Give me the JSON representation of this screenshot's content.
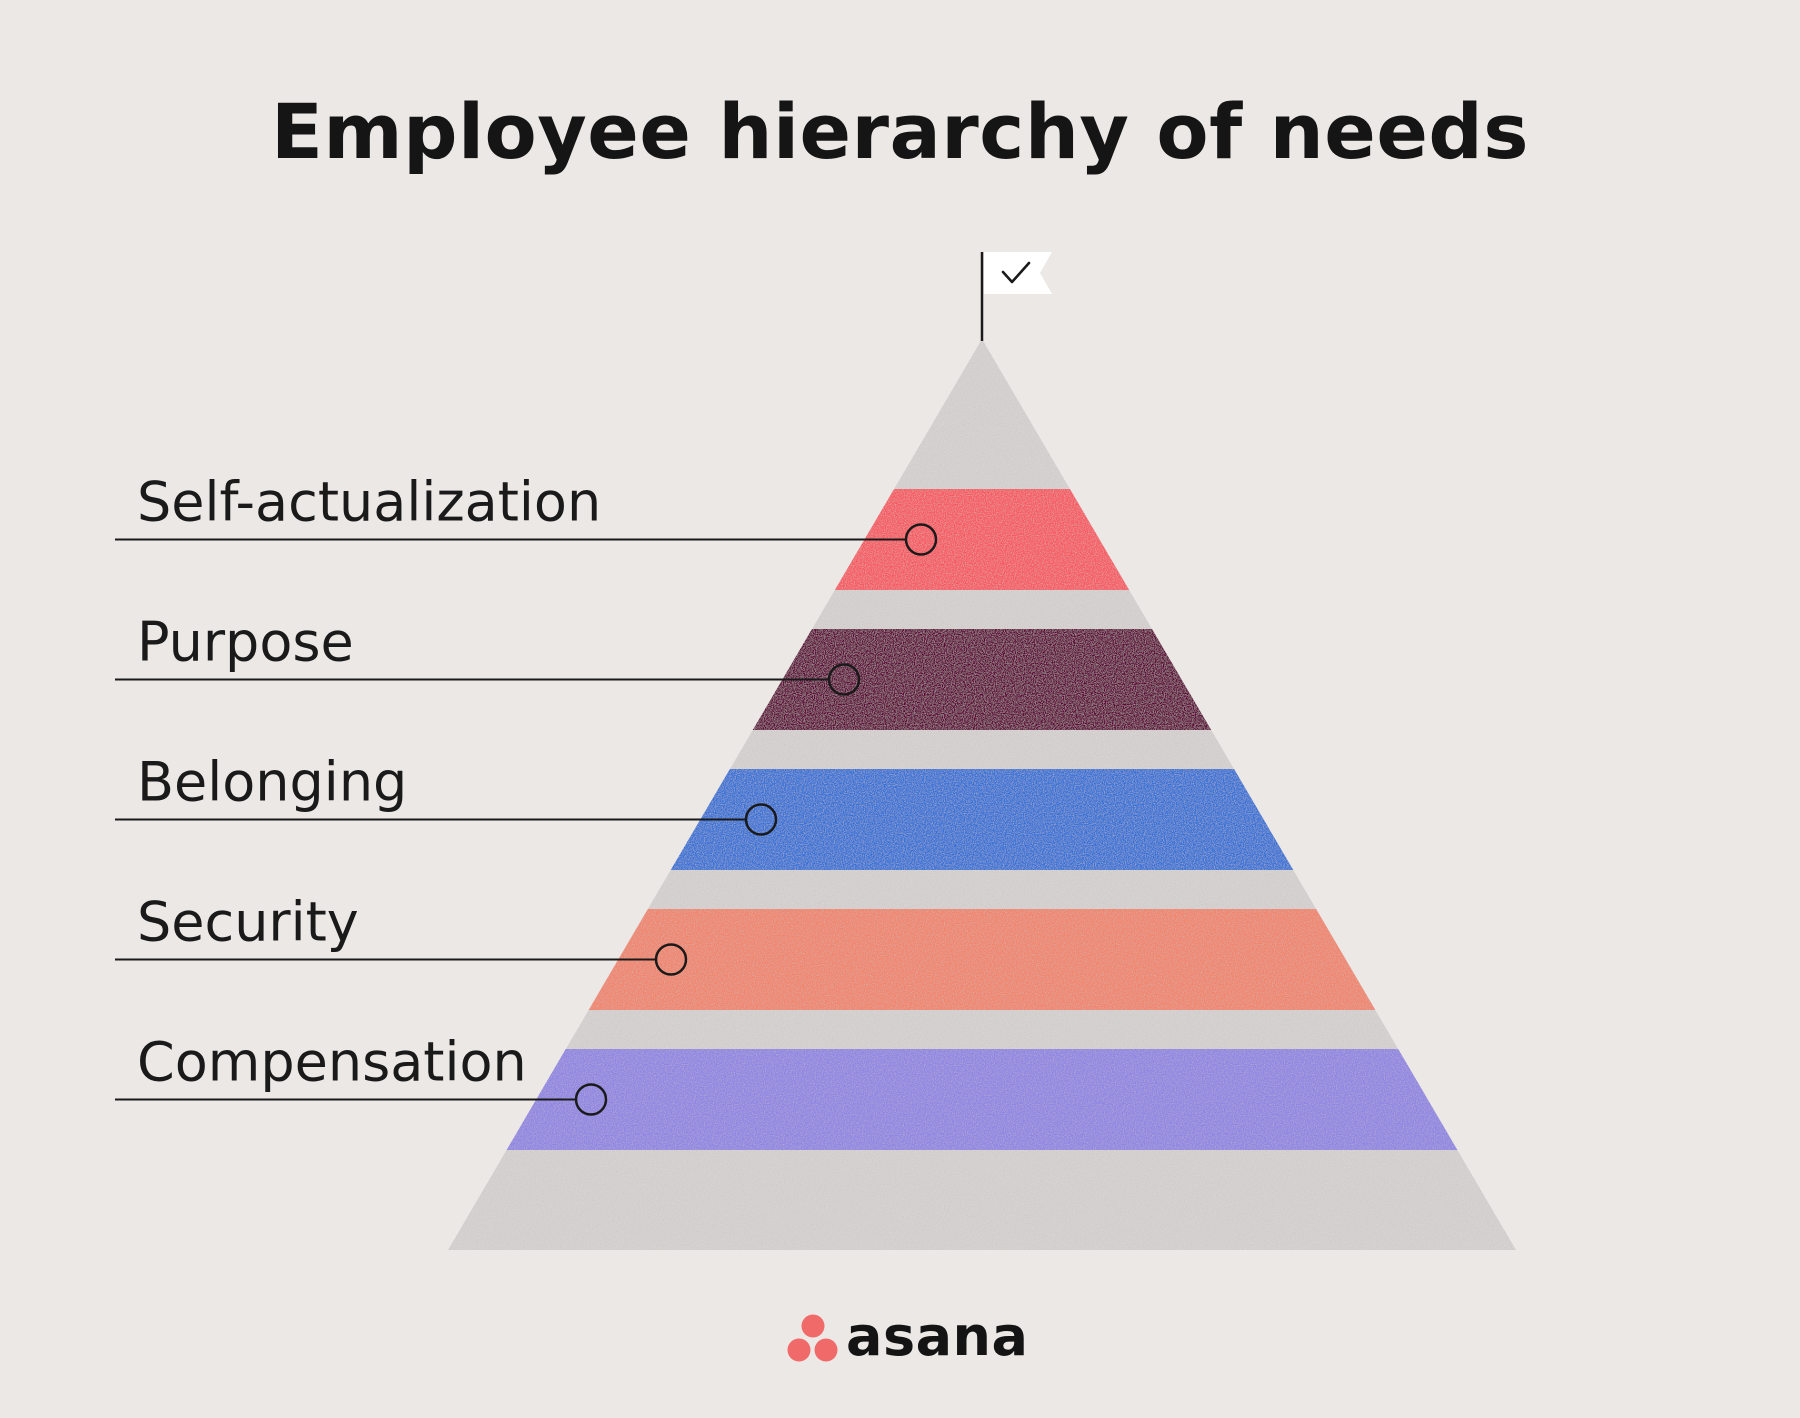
{
  "title": "Employee hierarchy of needs",
  "levels": [
    {
      "name": "Self-actualization",
      "color": "#f9575f"
    },
    {
      "name": "Purpose",
      "color": "#5f0037"
    },
    {
      "name": "Belonging",
      "color": "#3371d7"
    },
    {
      "name": "Security",
      "color": "#f3836a"
    },
    {
      "name": "Compensation",
      "color": "#8f84e5"
    }
  ],
  "pyramid_color": "#d7d3d2",
  "flag_icon": "check-icon",
  "brand": {
    "name": "asana",
    "color": "#f06a6a"
  }
}
